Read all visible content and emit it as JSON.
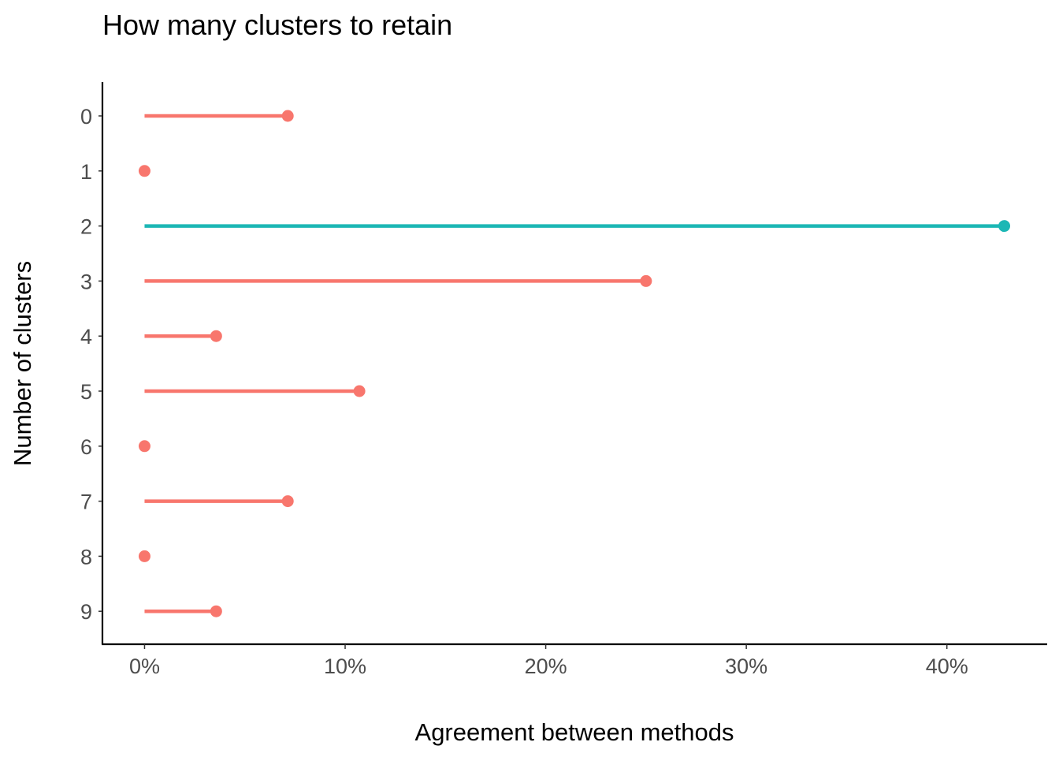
{
  "chart_data": {
    "type": "lollipop",
    "orientation": "horizontal",
    "title": "How many clusters to retain",
    "xlabel": "Agreement between methods",
    "ylabel": "Number of clusters",
    "categories": [
      "0",
      "1",
      "2",
      "3",
      "4",
      "5",
      "6",
      "7",
      "8",
      "9"
    ],
    "values": [
      7.14,
      0,
      42.86,
      25.0,
      3.57,
      10.71,
      0,
      7.14,
      0,
      3.57
    ],
    "value_unit": "percent",
    "highlight_index": 2,
    "colors": {
      "default": "#F8766D",
      "highlight": "#1CB7B5"
    },
    "xlim": [
      -2.1,
      45.0
    ],
    "xticks": [
      0,
      10,
      20,
      30,
      40
    ],
    "xtick_labels": [
      "0%",
      "10%",
      "20%",
      "30%",
      "40%"
    ],
    "grid": false,
    "legend": "none"
  }
}
